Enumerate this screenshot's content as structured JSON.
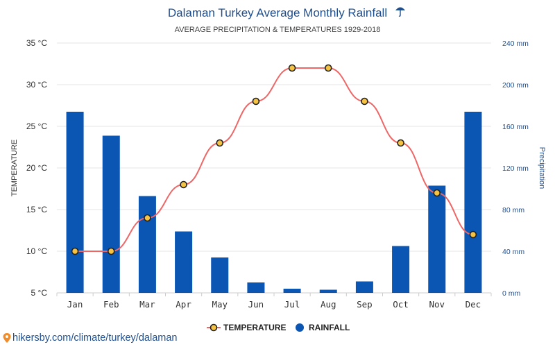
{
  "chart_data": {
    "type": "bar+line",
    "title": "Dalaman Turkey Average Monthly Rainfall",
    "title_icon": "umbrella-icon",
    "subtitle": "AVERAGE PRECIPITATION & TEMPERATURES 1929-2018",
    "categories": [
      "Jan",
      "Feb",
      "Mar",
      "Apr",
      "May",
      "Jun",
      "Jul",
      "Aug",
      "Sep",
      "Oct",
      "Nov",
      "Dec"
    ],
    "series": [
      {
        "name": "RAINFALL",
        "kind": "bar",
        "axis": "right",
        "color": "#0b55b3",
        "values": [
          174,
          151,
          93,
          59,
          34,
          10,
          4,
          3,
          11,
          45,
          103,
          174
        ]
      },
      {
        "name": "TEMPERATURE",
        "kind": "line",
        "axis": "left",
        "color": "#ee6666",
        "marker_fill": "#f5c242",
        "marker_stroke": "#222222",
        "values": [
          10,
          10,
          14,
          18,
          23,
          28,
          32,
          32,
          28,
          23,
          17,
          12
        ]
      }
    ],
    "y_left": {
      "label": "TEMPERATURE",
      "unit": "°C",
      "min": 5,
      "max": 35,
      "ticks": [
        "35 °C",
        "30 °C",
        "25 °C",
        "20 °C",
        "15 °C",
        "10 °C",
        "5 °C"
      ]
    },
    "y_right": {
      "label": "Precipitation",
      "unit": "mm",
      "min": 0,
      "max": 240,
      "ticks": [
        "240 mm",
        "200 mm",
        "160 mm",
        "120 mm",
        "80 mm",
        "40 mm",
        "0 mm"
      ]
    },
    "grid": true,
    "legend_position": "bottom-center"
  },
  "source": {
    "text": "hikersby.com/climate/turkey/dalaman",
    "icon": "map-pin-icon"
  }
}
